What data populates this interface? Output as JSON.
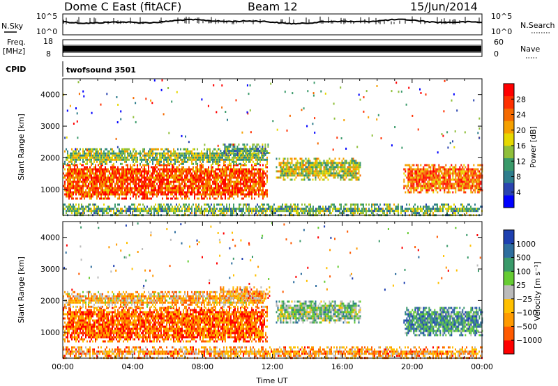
{
  "header": {
    "station": "Dome C East (fitACF)",
    "beam": "Beam 12",
    "date": "15/Jun/2014"
  },
  "top_panels": {
    "nsky_label": "N.Sky",
    "nsky_ticks": [
      "10^5",
      "10^0"
    ],
    "nsearch_label": "N.Search",
    "nsearch_ticks": [
      "10^5",
      "10^0"
    ],
    "freq_label_1": "Freq.",
    "freq_label_2": "[MHz]",
    "freq_ticks": [
      "18",
      "8"
    ],
    "nave_label": "Nave",
    "nave_ticks": [
      "60",
      "0"
    ],
    "cpid_label": "CPID",
    "cpid_text": "twofsound 3501"
  },
  "chart_data": [
    {
      "type": "heatmap",
      "name": "power",
      "ylabel": "Slant Range [km]",
      "yticks": [
        "4000",
        "3000",
        "2000",
        "1000"
      ],
      "ylim": [
        180,
        4500
      ],
      "xlim": [
        0,
        24
      ],
      "colorbar_label": "Power [dB]",
      "colorbar_ticks": [
        "28",
        "24",
        "20",
        "16",
        "12",
        "8",
        "4"
      ],
      "colorbar_colors": [
        "#0000ff",
        "#2a44b0",
        "#2e7d8c",
        "#3a9a6a",
        "#8fbf3a",
        "#e6d800",
        "#f5a000",
        "#f56a00",
        "#ff3000",
        "#ff0000"
      ],
      "regions": [
        {
          "t0": 0.0,
          "t1": 11.7,
          "r0": 700,
          "r1": 1800,
          "level": 0.8
        },
        {
          "t0": 0.0,
          "t1": 11.7,
          "r0": 1800,
          "r1": 2300,
          "level": 0.45
        },
        {
          "t0": 9.0,
          "t1": 11.8,
          "r0": 2100,
          "r1": 2450,
          "level": 0.35
        },
        {
          "t0": 12.2,
          "t1": 17.0,
          "r0": 1300,
          "r1": 2000,
          "level": 0.5
        },
        {
          "t0": 19.5,
          "t1": 24.0,
          "r0": 900,
          "r1": 1800,
          "level": 0.75
        },
        {
          "t0": 0.0,
          "t1": 24.0,
          "r0": 180,
          "r1": 550,
          "level": 0.4
        }
      ]
    },
    {
      "type": "heatmap",
      "name": "velocity",
      "ylabel": "Slant Range [km]",
      "yticks": [
        "4000",
        "3000",
        "2000",
        "1000"
      ],
      "ylim": [
        180,
        4500
      ],
      "xlim": [
        0,
        24
      ],
      "xticks": [
        "00:00",
        "04:00",
        "08:00",
        "12:00",
        "16:00",
        "20:00",
        "00:00"
      ],
      "xlabel": "Time UT",
      "colorbar_label": "Velocity [m s⁻¹]",
      "colorbar_ticks": [
        "1000",
        "500",
        "100",
        "25",
        "−25",
        "−100",
        "−500",
        "−1000"
      ],
      "colorbar_colors": [
        "#ff0000",
        "#ff5a00",
        "#ff9a00",
        "#ffc000",
        "#bbbbbb",
        "#66cc33",
        "#3a9a6a",
        "#2e6e9e",
        "#1e40b0"
      ],
      "regions": [
        {
          "t0": 0.0,
          "t1": 11.7,
          "r0": 700,
          "r1": 1800,
          "level": 0.2
        },
        {
          "t0": 0.0,
          "t1": 11.7,
          "r0": 1800,
          "r1": 2300,
          "level": 0.35
        },
        {
          "t0": 9.0,
          "t1": 11.8,
          "r0": 2100,
          "r1": 2450,
          "level": 0.3
        },
        {
          "t0": 12.2,
          "t1": 17.0,
          "r0": 1300,
          "r1": 2000,
          "level": 0.6
        },
        {
          "t0": 19.5,
          "t1": 24.0,
          "r0": 900,
          "r1": 1800,
          "level": 0.75
        },
        {
          "t0": 0.0,
          "t1": 24.0,
          "r0": 180,
          "r1": 550,
          "level": 0.3
        }
      ]
    }
  ]
}
